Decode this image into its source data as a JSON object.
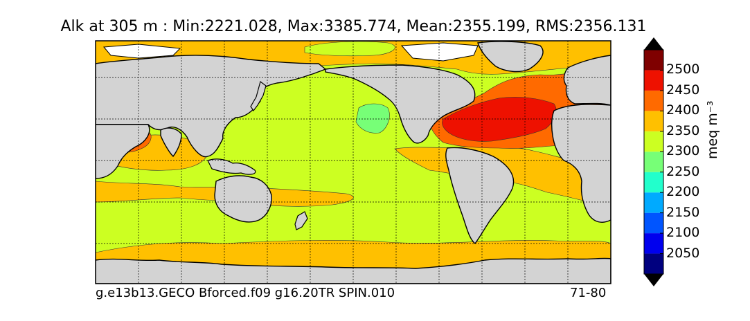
{
  "title": "Alk at 305 m : Min:2221.028, Max:3385.774, Mean:2355.199, RMS:2356.131",
  "footer": {
    "case_name": "g.e13b13.GECO Bforced.f09 g16.20TR SPIN.010",
    "years": "71-80"
  },
  "colorbar": {
    "units": "meq m⁻³",
    "ticks": [
      "2500",
      "2450",
      "2400",
      "2350",
      "2300",
      "2250",
      "2200",
      "2150",
      "2100",
      "2050"
    ],
    "levels": [
      2000,
      2050,
      2100,
      2150,
      2200,
      2250,
      2300,
      2350,
      2400,
      2450,
      2500
    ],
    "colors": [
      "#00007f",
      "#0000ee",
      "#0055ff",
      "#00aaff",
      "#22ffcc",
      "#77ff77",
      "#ccff22",
      "#ffc000",
      "#ff6a00",
      "#ee1100",
      "#7f0000"
    ],
    "extend": "both"
  },
  "map": {
    "projection": "cylindrical",
    "land_color": "#d3d3d3",
    "no_data_color": "#ffffff",
    "gridlines": true
  }
}
